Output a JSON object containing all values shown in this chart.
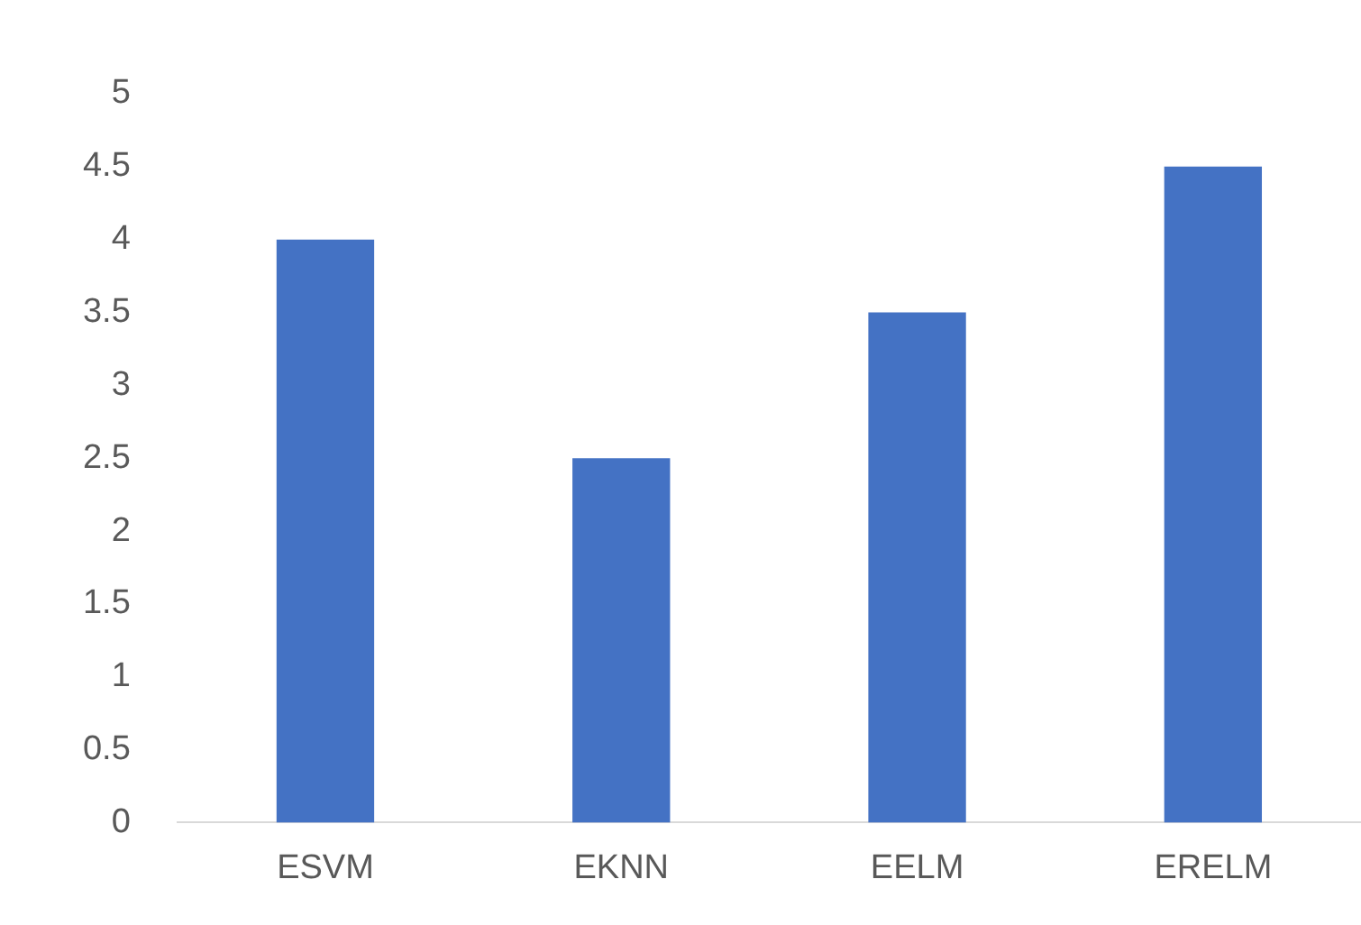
{
  "chart_data": {
    "type": "bar",
    "categories": [
      "ESVM",
      "EKNN",
      "EELM",
      "ERELM"
    ],
    "values": [
      4,
      2.5,
      3.5,
      4.5
    ],
    "color": "#4472c4",
    "ylim": [
      0,
      5
    ],
    "yticks": [
      0,
      0.5,
      1,
      1.5,
      2,
      2.5,
      3,
      3.5,
      4,
      4.5,
      5
    ],
    "grid": false,
    "legend": false
  }
}
